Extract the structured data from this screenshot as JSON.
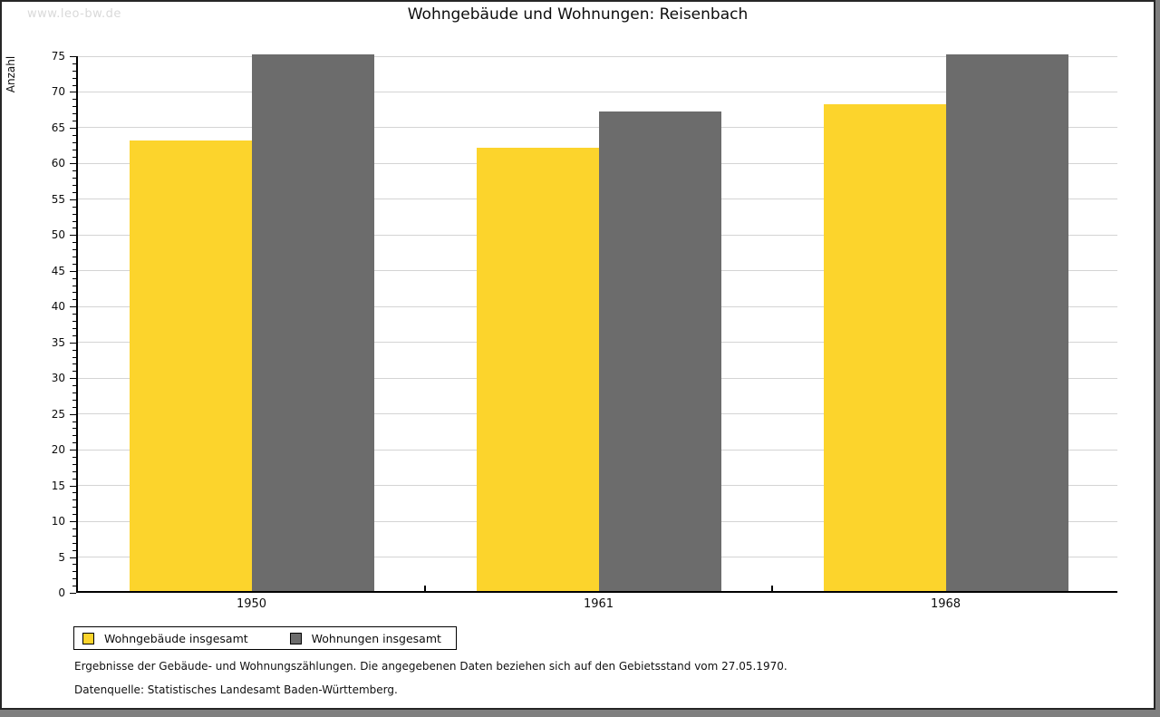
{
  "watermark": "www.leo-bw.de",
  "title": "Wohngebäude und Wohnungen: Reisenbach",
  "chart_data": {
    "type": "bar",
    "title": "Wohngebäude und Wohnungen: Reisenbach",
    "categories": [
      "1950",
      "1961",
      "1968"
    ],
    "series": [
      {
        "name": "Wohngebäude insgesamt",
        "color": "#fcd42c",
        "values": [
          63,
          62,
          68
        ]
      },
      {
        "name": "Wohnungen insgesamt",
        "color": "#6c6c6c",
        "values": [
          75,
          67,
          75
        ]
      }
    ],
    "xlabel": "",
    "ylabel": "Anzahl",
    "ylim": [
      0,
      75
    ],
    "ytick_step": 5,
    "minor_tick_step": 1,
    "grid": "horizontal-major",
    "legend_position": "bottom-left"
  },
  "footnotes": [
    "Ergebnisse der Gebäude- und Wohnungszählungen. Die angegebenen Daten beziehen sich auf den Gebietsstand vom 27.05.1970.",
    "Datenquelle: Statistisches Landesamt Baden-Württemberg."
  ]
}
